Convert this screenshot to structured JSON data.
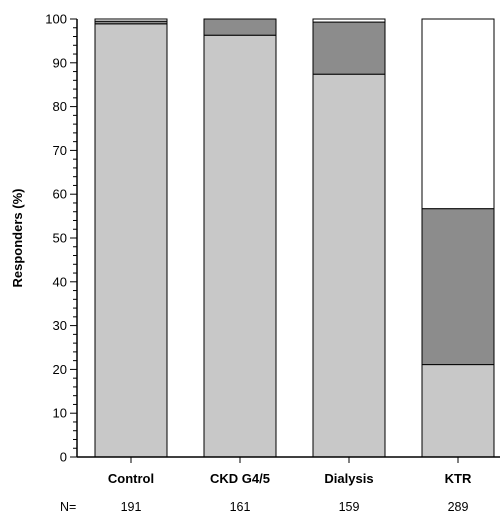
{
  "chart_data": {
    "type": "bar",
    "stacked": true,
    "title": "",
    "xlabel": "",
    "ylabel": "Responders (%)",
    "ylim": [
      0,
      100
    ],
    "yticks": [
      "0",
      "10",
      "20",
      "30",
      "40",
      "50",
      "60",
      "70",
      "80",
      "90",
      "100"
    ],
    "categories": [
      "Control",
      "CKD G4/5",
      "Dialysis",
      "KTR"
    ],
    "n_label": "N=",
    "n_values": [
      "191",
      "161",
      "159",
      "289"
    ],
    "series": [
      {
        "color": "#c8c8c8",
        "values": [
          98.9,
          96.3,
          87.4,
          21.1
        ]
      },
      {
        "color": "#8c8c8c",
        "values": [
          0.6,
          3.7,
          11.9,
          35.6
        ]
      },
      {
        "color": "#ffffff",
        "values": [
          0.5,
          0.0,
          0.7,
          43.3
        ]
      }
    ],
    "grid": false,
    "legend": "none"
  }
}
